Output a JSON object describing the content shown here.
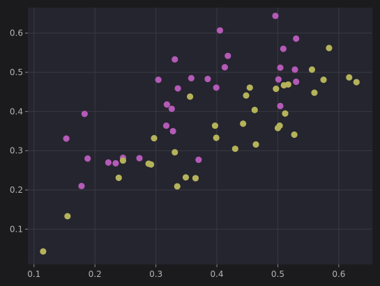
{
  "chart_data": {
    "type": "scatter",
    "title": "",
    "xlabel": "",
    "ylabel": "",
    "xlim": [
      0.09,
      0.655
    ],
    "ylim": [
      0.01,
      0.665
    ],
    "x_ticks": [
      0.1,
      0.2,
      0.3,
      0.4,
      0.5,
      0.6
    ],
    "y_ticks": [
      0.1,
      0.2,
      0.3,
      0.4,
      0.5,
      0.6
    ],
    "x_tick_labels": [
      "0.1",
      "0.2",
      "0.3",
      "0.4",
      "0.5",
      "0.6"
    ],
    "y_tick_labels": [
      "0.1",
      "0.2",
      "0.3",
      "0.4",
      "0.5",
      "0.6"
    ],
    "grid": true,
    "colors": {
      "figure_background": "#1b1b1e",
      "plot_background": "#25252f",
      "grid": "#3a3a44",
      "tick_text": "#b4b4b4"
    },
    "series": [
      {
        "color": "#b45ab7",
        "points": [
          [
            0.153,
            0.331
          ],
          [
            0.178,
            0.21
          ],
          [
            0.183,
            0.394
          ],
          [
            0.188,
            0.28
          ],
          [
            0.222,
            0.27
          ],
          [
            0.234,
            0.268
          ],
          [
            0.246,
            0.282
          ],
          [
            0.273,
            0.281
          ],
          [
            0.304,
            0.481
          ],
          [
            0.317,
            0.364
          ],
          [
            0.318,
            0.418
          ],
          [
            0.326,
            0.407
          ],
          [
            0.328,
            0.35
          ],
          [
            0.331,
            0.533
          ],
          [
            0.336,
            0.459
          ],
          [
            0.358,
            0.485
          ],
          [
            0.37,
            0.277
          ],
          [
            0.385,
            0.483
          ],
          [
            0.399,
            0.461
          ],
          [
            0.405,
            0.607
          ],
          [
            0.413,
            0.513
          ],
          [
            0.418,
            0.542
          ],
          [
            0.496,
            0.644
          ],
          [
            0.501,
            0.482
          ],
          [
            0.504,
            0.512
          ],
          [
            0.504,
            0.414
          ],
          [
            0.509,
            0.56
          ],
          [
            0.528,
            0.507
          ],
          [
            0.53,
            0.586
          ],
          [
            0.53,
            0.476
          ]
        ]
      },
      {
        "color": "#b5b35a",
        "points": [
          [
            0.115,
            0.043
          ],
          [
            0.155,
            0.133
          ],
          [
            0.239,
            0.231
          ],
          [
            0.246,
            0.275
          ],
          [
            0.288,
            0.267
          ],
          [
            0.292,
            0.265
          ],
          [
            0.297,
            0.332
          ],
          [
            0.331,
            0.296
          ],
          [
            0.335,
            0.209
          ],
          [
            0.349,
            0.232
          ],
          [
            0.356,
            0.438
          ],
          [
            0.365,
            0.23
          ],
          [
            0.397,
            0.364
          ],
          [
            0.399,
            0.333
          ],
          [
            0.43,
            0.305
          ],
          [
            0.443,
            0.369
          ],
          [
            0.448,
            0.441
          ],
          [
            0.454,
            0.461
          ],
          [
            0.462,
            0.404
          ],
          [
            0.464,
            0.316
          ],
          [
            0.497,
            0.458
          ],
          [
            0.5,
            0.358
          ],
          [
            0.503,
            0.364
          ],
          [
            0.51,
            0.467
          ],
          [
            0.512,
            0.395
          ],
          [
            0.517,
            0.469
          ],
          [
            0.527,
            0.341
          ],
          [
            0.556,
            0.507
          ],
          [
            0.56,
            0.448
          ],
          [
            0.575,
            0.481
          ],
          [
            0.584,
            0.562
          ],
          [
            0.617,
            0.487
          ],
          [
            0.629,
            0.475
          ]
        ]
      }
    ]
  }
}
